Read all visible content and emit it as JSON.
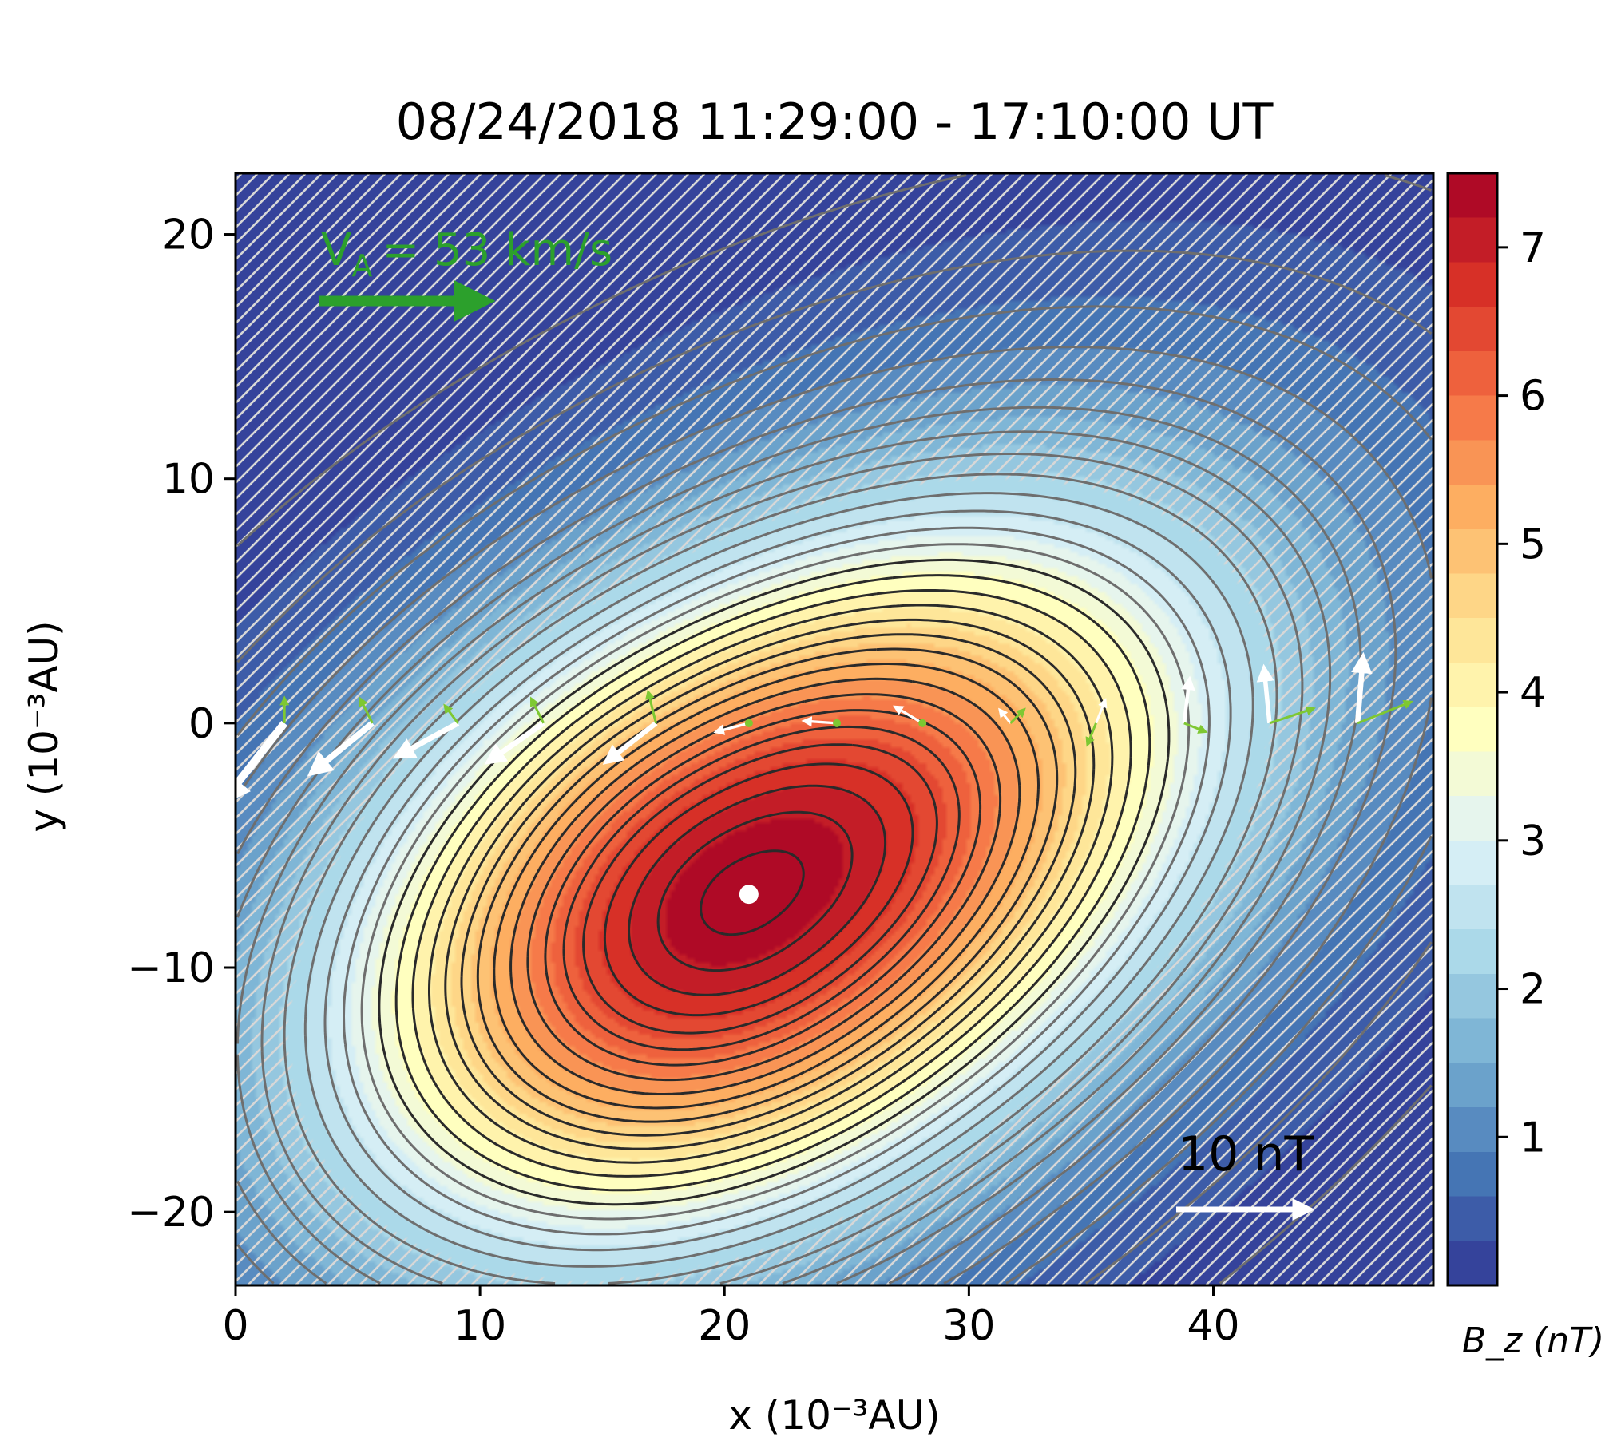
{
  "chart_data": {
    "type": "heatmap",
    "title": "08/24/2018 11:29:00 - 17:10:00 UT",
    "xlabel": "x (10⁻³AU)",
    "ylabel": "y (10⁻³AU)",
    "xlim": [
      0,
      49
    ],
    "ylim": [
      -23,
      22.5
    ],
    "xticks": [
      0,
      10,
      20,
      30,
      40
    ],
    "yticks": [
      -20,
      -10,
      0,
      10,
      20
    ],
    "colorbar": {
      "label": "B_z (nT)",
      "range": [
        0,
        7.5
      ],
      "ticks": [
        1,
        2,
        3,
        4,
        5,
        6,
        7
      ],
      "colormap": "RdYlBu_r"
    },
    "field": {
      "center_x": 21,
      "center_y": -7,
      "peak_Bz": 7.5,
      "axis_angle_deg": 32
    },
    "center_marker": {
      "x": 21,
      "y": -7,
      "color": "#ffffff"
    },
    "velocity_reference": {
      "label_main": "V",
      "label_sub": "A",
      "label_value": "= 53 km/s",
      "color": "#2ca02c"
    },
    "field_reference": {
      "label": "10 nT",
      "color": "#ffffff"
    },
    "spacecraft_track": {
      "y": 0,
      "samples": [
        {
          "x": 2.0,
          "bx": -5.5,
          "by": -7.0,
          "vx": 0.0,
          "vy": 0.6
        },
        {
          "x": 5.6,
          "bx": -5.5,
          "by": -4.5,
          "vx": -0.3,
          "vy": 0.6
        },
        {
          "x": 9.1,
          "bx": -5.5,
          "by": -3.0,
          "vx": -0.3,
          "vy": 0.4
        },
        {
          "x": 12.6,
          "bx": -5.0,
          "by": -3.5,
          "vx": -0.3,
          "vy": 0.6
        },
        {
          "x": 17.2,
          "bx": -4.5,
          "by": -3.5,
          "vx": -0.2,
          "vy": 0.8
        },
        {
          "x": 21.0,
          "bx": -3.0,
          "by": -0.8,
          "vx": 0.0,
          "vy": 0.0
        },
        {
          "x": 24.6,
          "bx": -3.0,
          "by": 0.2,
          "vx": 0.0,
          "vy": 0.0
        },
        {
          "x": 28.1,
          "bx": -2.5,
          "by": 1.5,
          "vx": 0.0,
          "vy": 0.0
        },
        {
          "x": 31.7,
          "bx": -0.8,
          "by": 1.0,
          "vx": 0.3,
          "vy": 0.3
        },
        {
          "x": 35.2,
          "bx": 0.8,
          "by": 2.0,
          "vx": -0.2,
          "vy": -0.5
        },
        {
          "x": 38.8,
          "bx": 0.5,
          "by": 4.0,
          "vx": 0.5,
          "vy": -0.2
        },
        {
          "x": 42.3,
          "bx": -0.5,
          "by": 5.0,
          "vx": 1.2,
          "vy": 0.4
        },
        {
          "x": 45.9,
          "bx": 0.5,
          "by": 6.0,
          "vx": 1.5,
          "vy": 0.6
        }
      ]
    }
  }
}
